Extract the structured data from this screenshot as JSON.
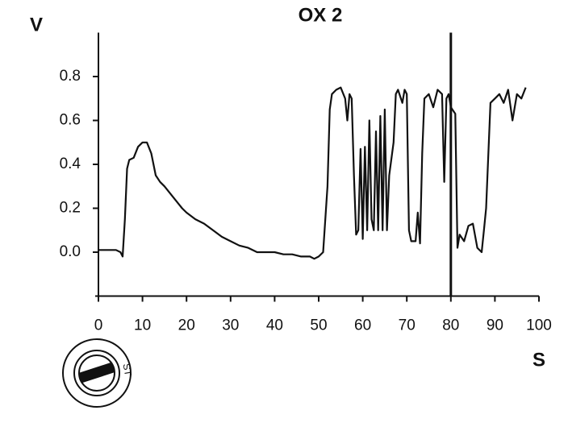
{
  "chart_data": {
    "type": "line",
    "title": "OX 2",
    "y_label": "V",
    "x_label": "S",
    "icon_label": "ST",
    "x": [
      0,
      1,
      2,
      3,
      4,
      5,
      5.5,
      6,
      6.5,
      7,
      8,
      9,
      10,
      11,
      12,
      13,
      14,
      15,
      17,
      19,
      20,
      22,
      24,
      26,
      28,
      30,
      32,
      34,
      36,
      38,
      40,
      42,
      44,
      46,
      48,
      49,
      50,
      51,
      52,
      52.5,
      53,
      54,
      55,
      56,
      56.5,
      57,
      57.5,
      58,
      58.5,
      59,
      59.5,
      60,
      60.5,
      61,
      61.5,
      62,
      62.5,
      63,
      63.5,
      64,
      64.5,
      65,
      65.5,
      66,
      67,
      67.5,
      68,
      69,
      69.5,
      70,
      70.5,
      71,
      72,
      72.5,
      73,
      73.5,
      74,
      75,
      76,
      77,
      78,
      78.5,
      79,
      79.5,
      80,
      81,
      81.5,
      82,
      83,
      84,
      85,
      86,
      87,
      87.5,
      88,
      89,
      90,
      91,
      92,
      93,
      94,
      95,
      96,
      97
    ],
    "series": [
      {
        "color": "#111111",
        "values": [
          0.01,
          0.01,
          0.01,
          0.01,
          0.01,
          0.0,
          -0.02,
          0.15,
          0.38,
          0.42,
          0.43,
          0.48,
          0.5,
          0.5,
          0.45,
          0.35,
          0.32,
          0.3,
          0.25,
          0.2,
          0.18,
          0.15,
          0.13,
          0.1,
          0.07,
          0.05,
          0.03,
          0.02,
          0.0,
          0.0,
          0.0,
          -0.01,
          -0.01,
          -0.02,
          -0.02,
          -0.03,
          -0.02,
          0.0,
          0.3,
          0.65,
          0.72,
          0.74,
          0.75,
          0.7,
          0.6,
          0.72,
          0.7,
          0.35,
          0.08,
          0.1,
          0.47,
          0.06,
          0.48,
          0.1,
          0.6,
          0.15,
          0.1,
          0.55,
          0.1,
          0.62,
          0.1,
          0.65,
          0.1,
          0.35,
          0.5,
          0.72,
          0.74,
          0.68,
          0.74,
          0.72,
          0.1,
          0.05,
          0.05,
          0.18,
          0.04,
          0.45,
          0.7,
          0.72,
          0.66,
          0.74,
          0.72,
          0.32,
          0.7,
          0.72,
          0.66,
          0.63,
          0.02,
          0.08,
          0.05,
          0.12,
          0.13,
          0.02,
          0.0,
          0.1,
          0.2,
          0.68,
          0.7,
          0.72,
          0.68,
          0.74,
          0.6,
          0.72,
          0.7,
          0.75
        ]
      }
    ],
    "vline": 80,
    "xlim": [
      0,
      100
    ],
    "xticks": [
      0,
      10,
      20,
      30,
      40,
      50,
      60,
      70,
      80,
      90,
      100
    ],
    "ylim": [
      -0.2,
      1.0
    ],
    "yticks": [
      {
        "value": 0,
        "label": "0.0"
      },
      0.2,
      0.4,
      0.6,
      0.8
    ]
  }
}
